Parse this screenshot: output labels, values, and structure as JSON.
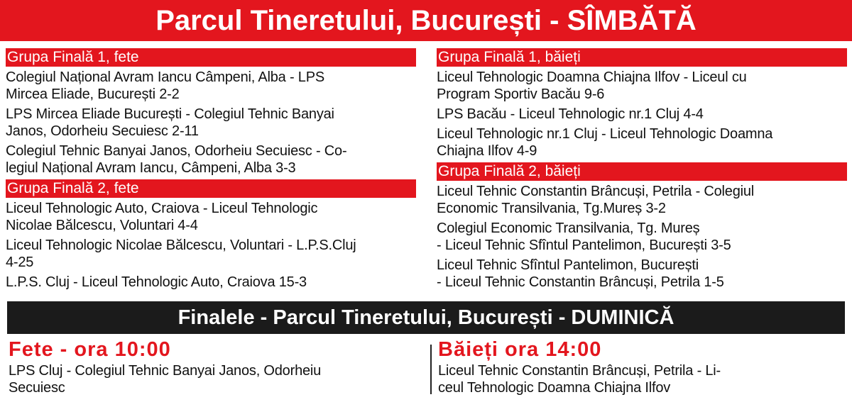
{
  "header": {
    "title": "Parcul Tineretului, București - SÎMBĂTĂ"
  },
  "columns": [
    {
      "groups": [
        {
          "title": "Grupa Finală 1, fete",
          "items": [
            [
              "Colegiul Național Avram Iancu Câmpeni, Alba - LPS",
              "Mircea Eliade, București 2-2"
            ],
            [
              "LPS Mircea Eliade București - Colegiul Tehnic Banyai",
              "Janos, Odorheiu Secuiesc 2-11"
            ],
            [
              "Colegiul Tehnic Banyai Janos, Odorheiu Secuiesc - Co-",
              "legiul Național Avram Iancu, Câmpeni, Alba 3-3"
            ]
          ]
        },
        {
          "title": "Grupa Finală 2, fete",
          "items": [
            [
              "Liceul Tehnologic Auto, Craiova - Liceul Tehnologic",
              "Nicolae Bălcescu, Voluntari 4-4"
            ],
            [
              "Liceul Tehnologic Nicolae Bălcescu, Voluntari - L.P.S.Cluj",
              "4-25"
            ],
            [
              "L.P.S. Cluj - Liceul Tehnologic Auto, Craiova 15-3"
            ]
          ]
        }
      ]
    },
    {
      "groups": [
        {
          "title": "Grupa Finală 1, băieți",
          "items": [
            [
              "Liceul Tehnologic Doamna Chiajna Ilfov - Liceul cu",
              "Program Sportiv Bacău 9-6"
            ],
            [
              "LPS Bacău - Liceul Tehnologic nr.1 Cluj 4-4"
            ],
            [
              "Liceul Tehnologic nr.1 Cluj - Liceul Tehnologic Doamna",
              "Chiajna Ilfov 4-9"
            ]
          ]
        },
        {
          "title": "Grupa Finală 2, băieți",
          "items": [
            [
              "Liceul Tehnic Constantin Brâncuși, Petrila - Colegiul",
              "Economic Transilvania, Tg.Mureș 3-2"
            ],
            [
              "Colegiul Economic Transilvania, Tg. Mureș",
              "- Liceul Tehnic Sfîntul Pantelimon, București 3-5"
            ],
            [
              "Liceul Tehnic Sfîntul Pantelimon, București",
              "- Liceul Tehnic Constantin Brâncuși, Petrila 1-5"
            ]
          ]
        }
      ]
    }
  ],
  "finals": {
    "title": "Finalele - Parcul Tineretului, București - DUMINICĂ",
    "sections": [
      {
        "title": "Fete - ora 10:00",
        "lines": [
          "LPS Cluj -  Colegiul Tehnic Banyai Janos, Odorheiu",
          "Secuiesc"
        ]
      },
      {
        "title": "Băieți ora 14:00",
        "lines": [
          "Liceul Tehnic Constantin Brâncuși, Petrila - Li-",
          "ceul Tehnologic Doamna Chiajna Ilfov"
        ]
      }
    ]
  }
}
